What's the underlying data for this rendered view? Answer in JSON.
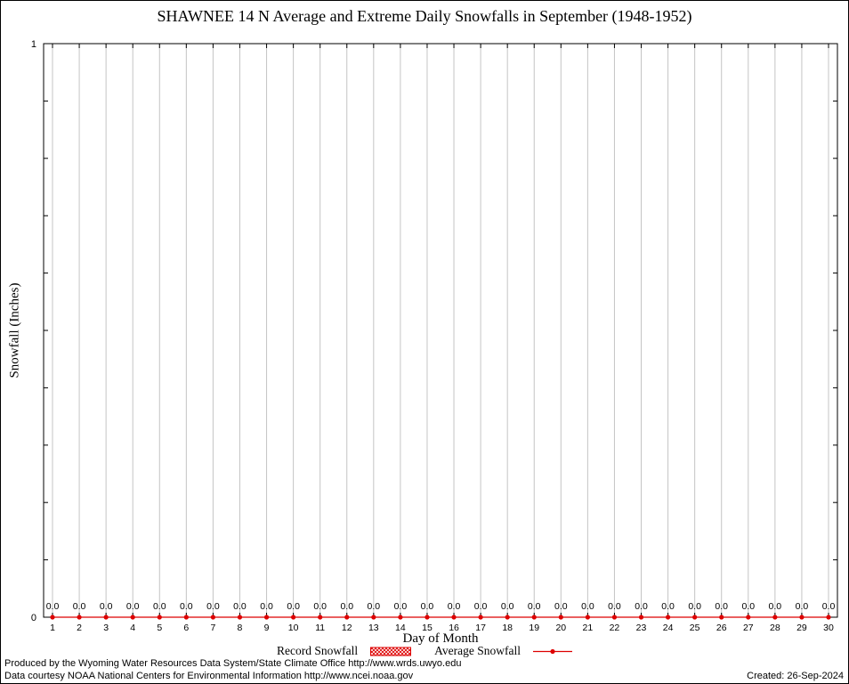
{
  "chart_data": {
    "type": "line",
    "title": "SHAWNEE 14 N Average and Extreme Daily Snowfalls in September (1948-1952)",
    "xlabel": "Day of Month",
    "ylabel": "Snowfall (Inches)",
    "ylim": [
      0,
      1
    ],
    "yticks": [
      {
        "v": 0,
        "label": "0"
      },
      {
        "v": 1,
        "label": "1"
      }
    ],
    "x": [
      1,
      2,
      3,
      4,
      5,
      6,
      7,
      8,
      9,
      10,
      11,
      12,
      13,
      14,
      15,
      16,
      17,
      18,
      19,
      20,
      21,
      22,
      23,
      24,
      25,
      26,
      27,
      28,
      29,
      30
    ],
    "series": [
      {
        "name": "Record Snowfall",
        "style": "hatched-box",
        "values": [
          0,
          0,
          0,
          0,
          0,
          0,
          0,
          0,
          0,
          0,
          0,
          0,
          0,
          0,
          0,
          0,
          0,
          0,
          0,
          0,
          0,
          0,
          0,
          0,
          0,
          0,
          0,
          0,
          0,
          0
        ]
      },
      {
        "name": "Average Snowfall",
        "style": "linespoints",
        "values": [
          0,
          0,
          0,
          0,
          0,
          0,
          0,
          0,
          0,
          0,
          0,
          0,
          0,
          0,
          0,
          0,
          0,
          0,
          0,
          0,
          0,
          0,
          0,
          0,
          0,
          0,
          0,
          0,
          0,
          0
        ]
      }
    ],
    "point_labels": [
      "0.0",
      "0.0",
      "0.0",
      "0.0",
      "0.0",
      "0.0",
      "0.0",
      "0.0",
      "0.0",
      "0.0",
      "0.0",
      "0.0",
      "0.0",
      "0.0",
      "0.0",
      "0.0",
      "0.0",
      "0.0",
      "0.0",
      "0.0",
      "0.0",
      "0.0",
      "0.0",
      "0.0",
      "0.0",
      "0.0",
      "0.0",
      "0.0",
      "0.0",
      "0.0"
    ],
    "grid": "vertical-per-day",
    "legend_position": "bottom-center",
    "colors": {
      "series_red": "#dd0000",
      "gridline": "#c4c4c4",
      "axis": "#000000"
    }
  },
  "footer": {
    "line1": "Produced by the Wyoming Water Resources Data System/State Climate Office http://www.wrds.uwyo.edu",
    "line2": "Data courtesy NOAA National Centers for Environmental Information http://www.ncei.noaa.gov",
    "created": "Created: 26-Sep-2024"
  }
}
